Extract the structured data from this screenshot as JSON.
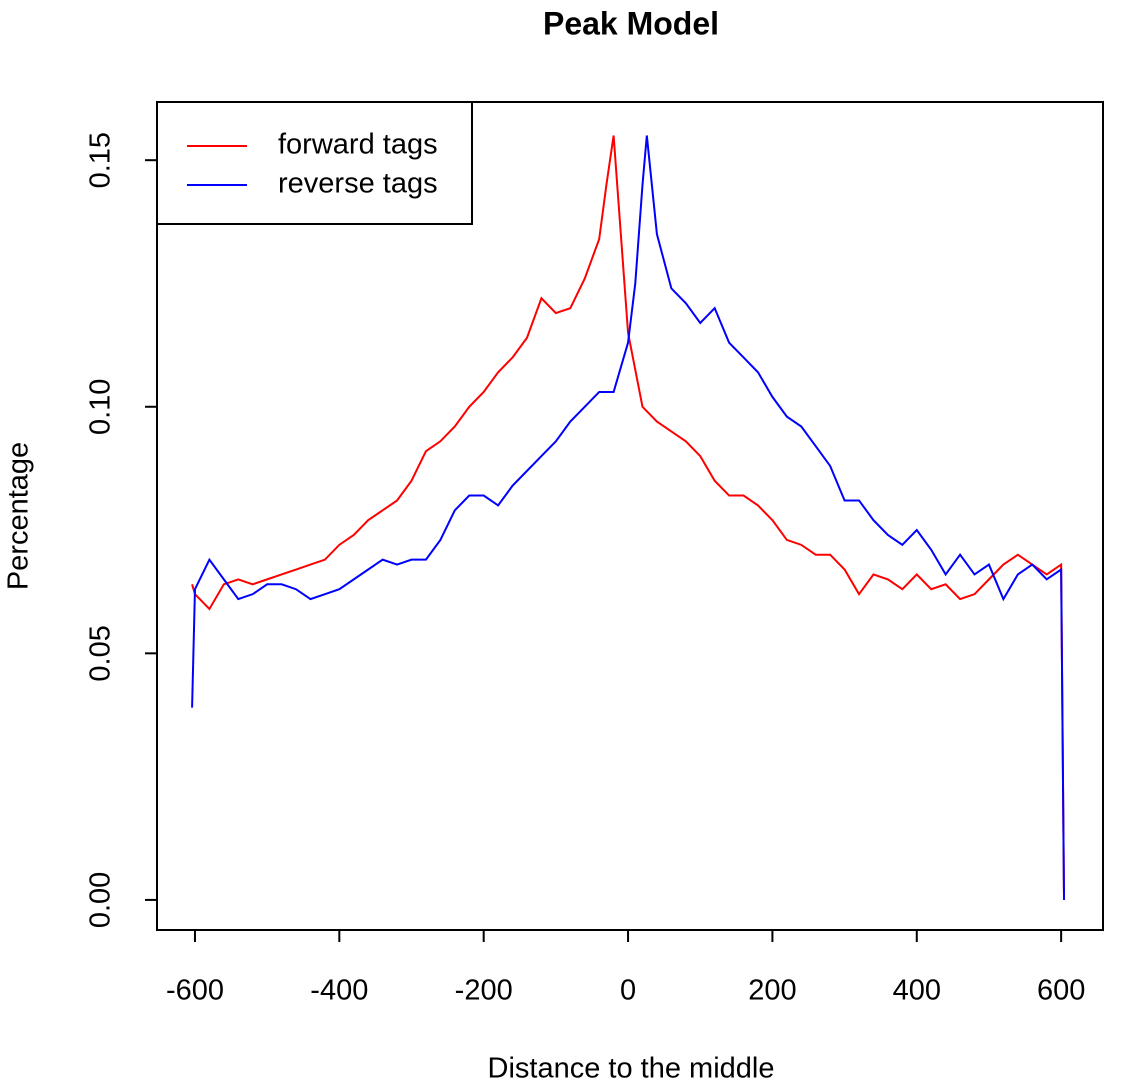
{
  "chart_data": {
    "type": "line",
    "title": "Peak Model",
    "xlabel": "Distance to the middle",
    "ylabel": "Percentage",
    "xlim": [
      -652.6,
      658
    ],
    "ylim": [
      -0.0061,
      0.1618
    ],
    "xticks": [
      -600,
      -400,
      -200,
      0,
      200,
      400,
      600
    ],
    "yticks": [
      {
        "value": 0,
        "label": "0.00"
      },
      {
        "value": 0.05,
        "label": "0.05"
      },
      {
        "value": 0.1,
        "label": "0.10"
      },
      {
        "value": 0.15,
        "label": "0.15"
      }
    ],
    "legend": "top-left",
    "series": [
      {
        "name": "forward tags",
        "color": "#ff0000",
        "x": [
          -604,
          -600,
          -580,
          -560,
          -540,
          -520,
          -500,
          -480,
          -460,
          -440,
          -420,
          -400,
          -380,
          -360,
          -340,
          -320,
          -300,
          -280,
          -260,
          -240,
          -220,
          -200,
          -180,
          -160,
          -140,
          -120,
          -100,
          -80,
          -60,
          -40,
          -30,
          -20,
          -10,
          0,
          20,
          40,
          60,
          80,
          100,
          120,
          140,
          160,
          180,
          200,
          220,
          240,
          260,
          280,
          300,
          320,
          340,
          360,
          380,
          400,
          420,
          440,
          460,
          480,
          500,
          520,
          540,
          560,
          580,
          600,
          604
        ],
        "values": [
          0.064,
          0.062,
          0.059,
          0.064,
          0.065,
          0.064,
          0.065,
          0.066,
          0.067,
          0.068,
          0.069,
          0.072,
          0.074,
          0.077,
          0.079,
          0.081,
          0.085,
          0.091,
          0.093,
          0.096,
          0.1,
          0.103,
          0.107,
          0.11,
          0.114,
          0.122,
          0.119,
          0.12,
          0.126,
          0.134,
          0.145,
          0.155,
          0.135,
          0.115,
          0.1,
          0.097,
          0.095,
          0.093,
          0.09,
          0.085,
          0.082,
          0.082,
          0.08,
          0.077,
          0.073,
          0.072,
          0.07,
          0.07,
          0.067,
          0.062,
          0.066,
          0.065,
          0.063,
          0.066,
          0.063,
          0.064,
          0.061,
          0.062,
          0.065,
          0.068,
          0.07,
          0.068,
          0.066,
          0.068,
          0.0
        ]
      },
      {
        "name": "reverse tags",
        "color": "#0000ff",
        "x": [
          -604,
          -600,
          -580,
          -560,
          -540,
          -520,
          -500,
          -480,
          -460,
          -440,
          -420,
          -400,
          -380,
          -360,
          -340,
          -320,
          -300,
          -280,
          -260,
          -240,
          -220,
          -200,
          -180,
          -160,
          -140,
          -120,
          -100,
          -80,
          -60,
          -40,
          -20,
          0,
          10,
          20,
          26,
          40,
          60,
          80,
          100,
          120,
          140,
          160,
          180,
          200,
          220,
          240,
          260,
          280,
          300,
          320,
          340,
          360,
          380,
          400,
          420,
          440,
          460,
          480,
          500,
          520,
          540,
          560,
          580,
          600,
          604
        ],
        "values": [
          0.039,
          0.063,
          0.069,
          0.065,
          0.061,
          0.062,
          0.064,
          0.064,
          0.063,
          0.061,
          0.062,
          0.063,
          0.065,
          0.067,
          0.069,
          0.068,
          0.069,
          0.069,
          0.073,
          0.079,
          0.082,
          0.082,
          0.08,
          0.084,
          0.087,
          0.09,
          0.093,
          0.097,
          0.1,
          0.103,
          0.103,
          0.113,
          0.125,
          0.145,
          0.155,
          0.135,
          0.124,
          0.121,
          0.117,
          0.12,
          0.113,
          0.11,
          0.107,
          0.102,
          0.098,
          0.096,
          0.092,
          0.088,
          0.081,
          0.081,
          0.077,
          0.074,
          0.072,
          0.075,
          0.071,
          0.066,
          0.07,
          0.066,
          0.068,
          0.061,
          0.066,
          0.068,
          0.065,
          0.067,
          0.0
        ]
      }
    ]
  }
}
